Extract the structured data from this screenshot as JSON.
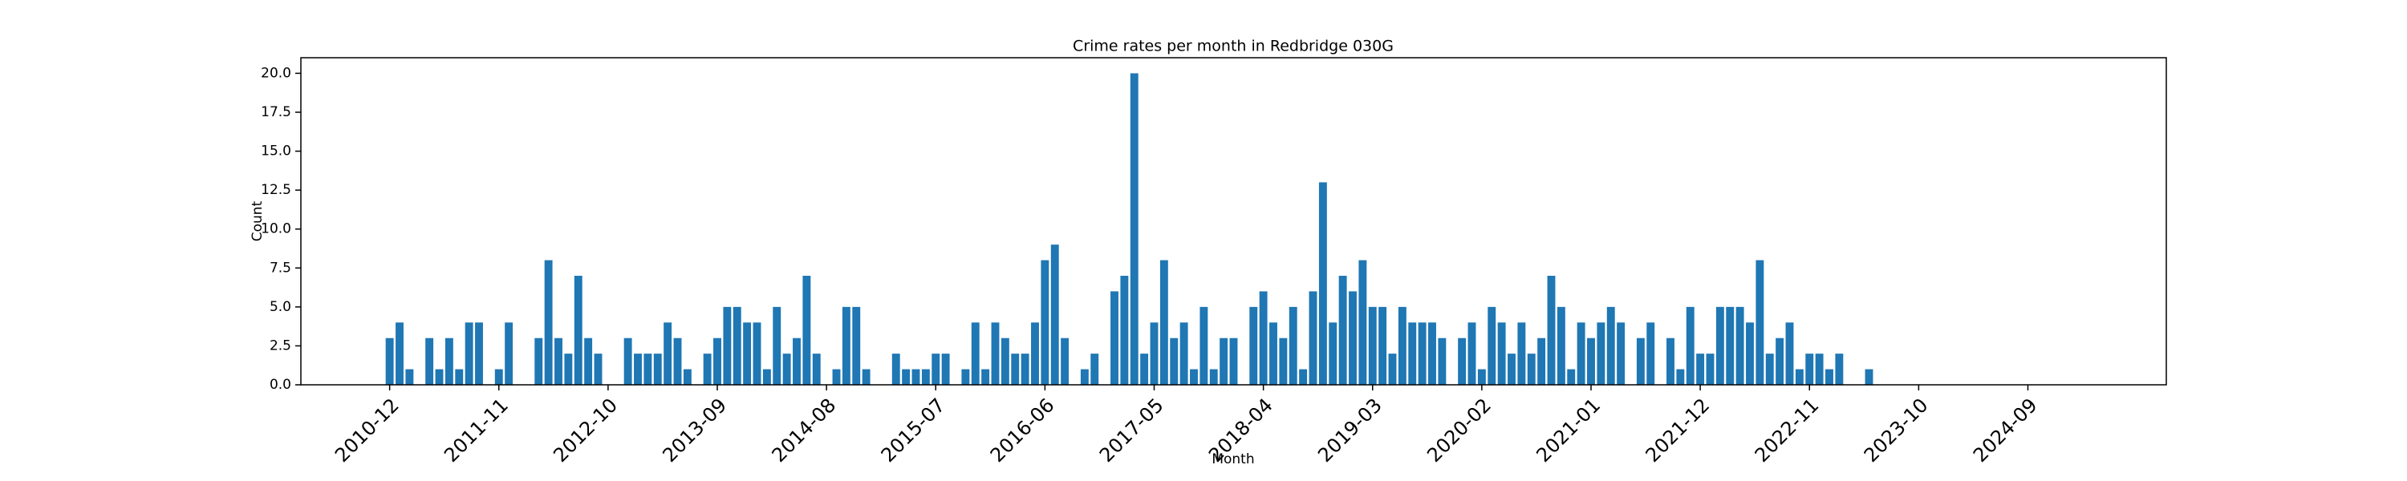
{
  "chart_data": {
    "type": "bar",
    "title": "Crime rates per month in Redbridge 030G",
    "xlabel": "Month",
    "ylabel": "Count",
    "color": "#1f77b4",
    "categories": [
      "2010-12",
      null,
      null,
      null,
      null,
      null,
      null,
      null,
      null,
      null,
      null,
      "2011-11",
      null,
      null,
      null,
      null,
      null,
      null,
      null,
      null,
      null,
      null,
      "2012-10",
      null,
      null,
      null,
      null,
      null,
      null,
      null,
      null,
      null,
      null,
      "2013-09",
      null,
      null,
      null,
      null,
      null,
      null,
      null,
      null,
      null,
      null,
      "2014-08",
      null,
      null,
      null,
      null,
      null,
      null,
      null,
      null,
      null,
      null,
      "2015-07",
      null,
      null,
      null,
      null,
      null,
      null,
      null,
      null,
      null,
      null,
      "2016-06",
      null,
      null,
      null,
      null,
      null,
      null,
      null,
      null,
      null,
      null,
      "2017-05",
      null,
      null,
      null,
      null,
      null,
      null,
      null,
      null,
      null,
      null,
      "2018-04",
      null,
      null,
      null,
      null,
      null,
      null,
      null,
      null,
      null,
      null,
      "2019-03",
      null,
      null,
      null,
      null,
      null,
      null,
      null,
      null,
      null,
      null,
      "2020-02",
      null,
      null,
      null,
      null,
      null,
      null,
      null,
      null,
      null,
      null,
      "2021-01",
      null,
      null,
      null,
      null,
      null,
      null,
      null,
      null,
      null,
      null,
      "2021-12",
      null,
      null,
      null,
      null,
      null,
      null,
      null,
      null,
      null,
      null,
      "2022-11",
      null,
      null,
      null,
      null,
      null,
      null,
      null,
      null,
      null,
      null,
      "2023-10",
      null,
      null,
      null,
      null,
      null,
      null,
      null,
      null,
      null,
      null,
      "2024-09",
      null,
      null,
      null,
      null,
      null
    ],
    "values": [
      3,
      4,
      1,
      0,
      3,
      1,
      3,
      1,
      4,
      4,
      0,
      1,
      4,
      0,
      0,
      3,
      8,
      3,
      2,
      7,
      3,
      2,
      0,
      0,
      3,
      2,
      2,
      2,
      4,
      3,
      1,
      0,
      2,
      3,
      5,
      5,
      4,
      4,
      1,
      5,
      2,
      3,
      7,
      2,
      0,
      1,
      5,
      5,
      1,
      0,
      0,
      2,
      1,
      1,
      1,
      2,
      2,
      0,
      1,
      4,
      1,
      4,
      3,
      2,
      2,
      4,
      8,
      9,
      3,
      0,
      1,
      2,
      0,
      6,
      7,
      20,
      2,
      4,
      8,
      3,
      4,
      1,
      5,
      1,
      3,
      3,
      0,
      5,
      6,
      4,
      3,
      5,
      1,
      6,
      13,
      4,
      7,
      6,
      8,
      5,
      5,
      2,
      5,
      4,
      4,
      4,
      3,
      0,
      3,
      4,
      1,
      5,
      4,
      2,
      4,
      2,
      3,
      7,
      5,
      1,
      4,
      3,
      4,
      5,
      4,
      0,
      3,
      4,
      0,
      3,
      1,
      5,
      2,
      2,
      5,
      5,
      5,
      4,
      8,
      2,
      3,
      4,
      1,
      2,
      2,
      1,
      2,
      0,
      0,
      1,
      0,
      0,
      0,
      0,
      0,
      0,
      0,
      0,
      0,
      0,
      0,
      0,
      0,
      0,
      0,
      0,
      0,
      0,
      0,
      0,
      0
    ],
    "ylim": [
      0,
      21
    ],
    "yticks": [
      {
        "value": 0,
        "label": "0.0"
      },
      {
        "value": 2.5,
        "label": "2.5"
      },
      {
        "value": 5,
        "label": "5.0"
      },
      {
        "value": 7.5,
        "label": "7.5"
      },
      {
        "value": 10,
        "label": "10.0"
      },
      {
        "value": 12.5,
        "label": "12.5"
      },
      {
        "value": 15,
        "label": "15.0"
      },
      {
        "value": 17.5,
        "label": "17.5"
      },
      {
        "value": 20,
        "label": "20.0"
      }
    ]
  }
}
